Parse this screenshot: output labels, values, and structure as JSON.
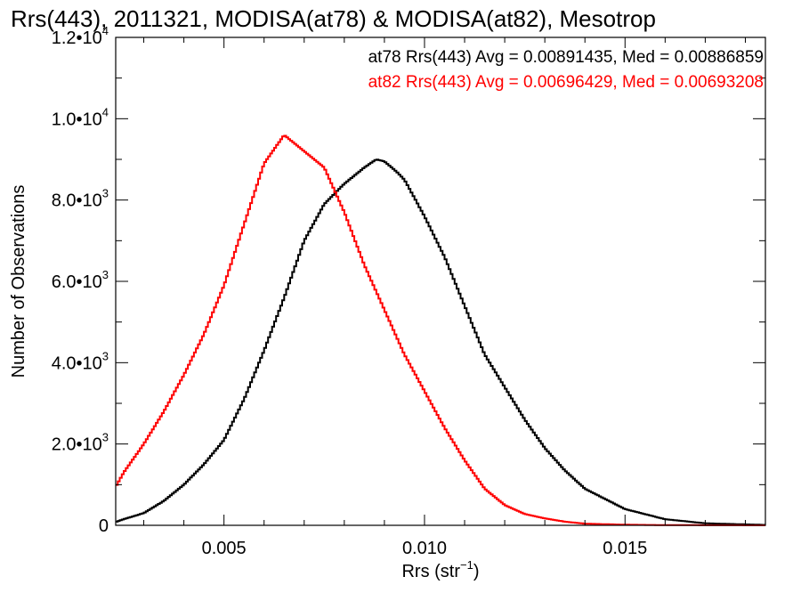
{
  "chart_data": {
    "type": "line",
    "style": "histogram-step",
    "title": "Rrs(443), 2011321, MODISA(at78) & MODISA(at82), Mesotrop",
    "xlabel": "Rrs (str",
    "xlabel_sup": "−1",
    "xlabel_end": ")",
    "ylabel": "Number of Observations",
    "xlim": [
      0.0023,
      0.0185
    ],
    "ylim": [
      0,
      12000
    ],
    "grid": false,
    "legend_position": "top-right",
    "x_ticks": [
      {
        "value": 0.005,
        "label": "0.005"
      },
      {
        "value": 0.01,
        "label": "0.010"
      },
      {
        "value": 0.015,
        "label": "0.015"
      }
    ],
    "y_ticks": [
      {
        "value": 0,
        "mant": "0",
        "exp": ""
      },
      {
        "value": 2000,
        "mant": "2.0•10",
        "exp": "3"
      },
      {
        "value": 4000,
        "mant": "4.0•10",
        "exp": "3"
      },
      {
        "value": 6000,
        "mant": "6.0•10",
        "exp": "3"
      },
      {
        "value": 8000,
        "mant": "8.0•10",
        "exp": "3"
      },
      {
        "value": 10000,
        "mant": "1.0•10",
        "exp": "4"
      },
      {
        "value": 12000,
        "mant": "1.2•10",
        "exp": "4"
      }
    ],
    "series": [
      {
        "name": "at78",
        "legend": "at78 Rrs(443) Avg = 0.00891435, Med = 0.00886859",
        "color": "#000000",
        "x": [
          0.0023,
          0.0025,
          0.003,
          0.0035,
          0.004,
          0.0045,
          0.005,
          0.0055,
          0.006,
          0.0065,
          0.007,
          0.0075,
          0.008,
          0.0085,
          0.0088,
          0.009,
          0.0093,
          0.0095,
          0.01,
          0.0105,
          0.011,
          0.0115,
          0.012,
          0.0125,
          0.013,
          0.0135,
          0.014,
          0.0145,
          0.015,
          0.016,
          0.017,
          0.0185
        ],
        "y": [
          80,
          150,
          300,
          600,
          1000,
          1500,
          2100,
          3100,
          4300,
          5600,
          7000,
          7900,
          8400,
          8800,
          9000,
          8950,
          8700,
          8500,
          7600,
          6600,
          5400,
          4200,
          3400,
          2600,
          1900,
          1350,
          900,
          650,
          400,
          150,
          50,
          10
        ]
      },
      {
        "name": "at82",
        "legend": "at82 Rrs(443) Avg = 0.00696429, Med = 0.00693208",
        "color": "#ff0000",
        "x": [
          0.0023,
          0.0025,
          0.003,
          0.0035,
          0.004,
          0.0045,
          0.005,
          0.0055,
          0.006,
          0.0065,
          0.007,
          0.0075,
          0.008,
          0.0085,
          0.009,
          0.0095,
          0.01,
          0.0105,
          0.011,
          0.0115,
          0.012,
          0.0125,
          0.013,
          0.0135,
          0.014,
          0.015,
          0.016,
          0.0185
        ],
        "y": [
          950,
          1300,
          2000,
          2800,
          3700,
          4700,
          5900,
          7400,
          8900,
          9600,
          9200,
          8800,
          7700,
          6400,
          5300,
          4200,
          3300,
          2400,
          1600,
          900,
          500,
          280,
          170,
          90,
          40,
          15,
          5,
          0
        ]
      }
    ]
  }
}
